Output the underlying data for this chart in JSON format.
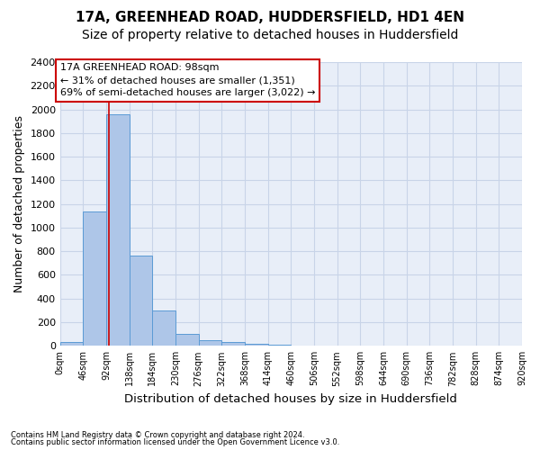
{
  "title1": "17A, GREENHEAD ROAD, HUDDERSFIELD, HD1 4EN",
  "title2": "Size of property relative to detached houses in Huddersfield",
  "xlabel": "Distribution of detached houses by size in Huddersfield",
  "ylabel": "Number of detached properties",
  "footnote1": "Contains HM Land Registry data © Crown copyright and database right 2024.",
  "footnote2": "Contains public sector information licensed under the Open Government Licence v3.0.",
  "bin_edges": [
    0,
    46,
    92,
    138,
    184,
    230,
    276,
    322,
    368,
    414,
    460,
    506,
    552,
    598,
    644,
    690,
    736,
    782,
    828,
    874,
    920
  ],
  "bar_heights": [
    35,
    1135,
    1960,
    760,
    300,
    105,
    50,
    35,
    20,
    10,
    5,
    3,
    2,
    2,
    1,
    1,
    1,
    1,
    1,
    1
  ],
  "bar_color": "#aec6e8",
  "bar_edge_color": "#5b9bd5",
  "property_size": 98,
  "vline_color": "#cc0000",
  "annotation_line1": "17A GREENHEAD ROAD: 98sqm",
  "annotation_line2": "← 31% of detached houses are smaller (1,351)",
  "annotation_line3": "69% of semi-detached houses are larger (3,022) →",
  "annotation_box_color": "#cc0000",
  "ylim": [
    0,
    2400
  ],
  "yticks": [
    0,
    200,
    400,
    600,
    800,
    1000,
    1200,
    1400,
    1600,
    1800,
    2000,
    2200,
    2400
  ],
  "grid_color": "#c8d4e8",
  "background_color": "#e8eef8",
  "title1_fontsize": 11,
  "title2_fontsize": 10,
  "xlabel_fontsize": 9.5,
  "ylabel_fontsize": 9
}
